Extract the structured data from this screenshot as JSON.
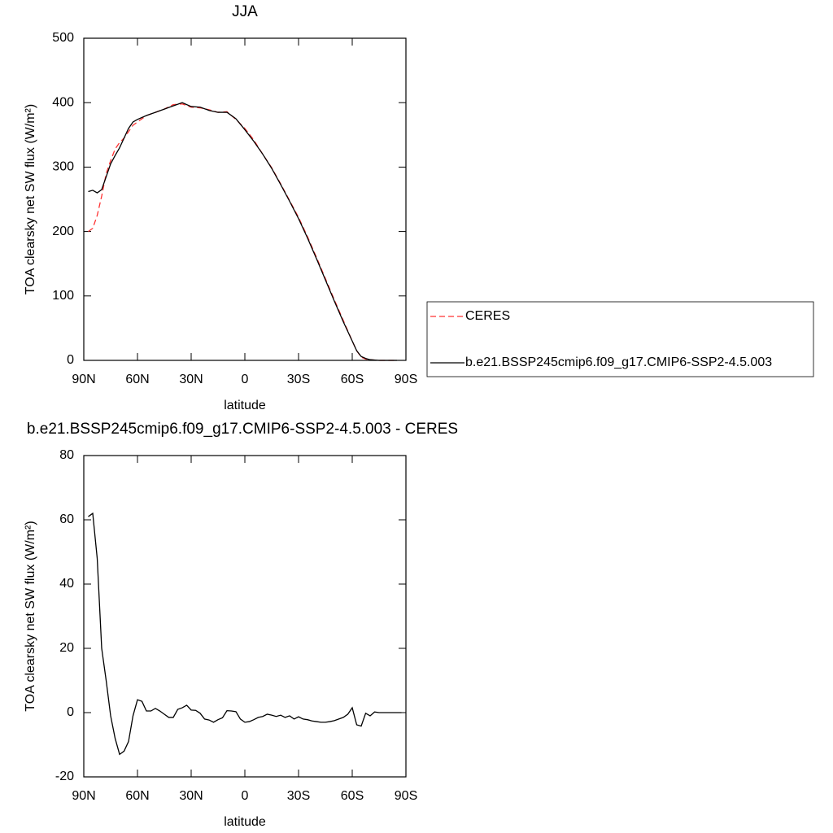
{
  "chart_data": [
    {
      "type": "line",
      "title": "JJA",
      "xlabel": "latitude",
      "ylabel": "TOA clearsky net SW flux (W/m²)",
      "xlim": [
        90,
        -90
      ],
      "xticks": [
        {
          "value": 90,
          "label": "90N"
        },
        {
          "value": 60,
          "label": "60N"
        },
        {
          "value": 30,
          "label": "30N"
        },
        0,
        {
          "value": -30,
          "label": "30S"
        },
        {
          "value": -60,
          "label": "60S"
        },
        {
          "value": -90,
          "label": "90S"
        }
      ],
      "ylim": [
        0,
        500
      ],
      "yticks": [
        0,
        100,
        200,
        300,
        400,
        500
      ],
      "legend": "right",
      "x": [
        87.5,
        85,
        82.5,
        80,
        77.5,
        75,
        72.5,
        70,
        67.5,
        65,
        62.5,
        60,
        55,
        50,
        45,
        40,
        35,
        30,
        25,
        20,
        15,
        10,
        5,
        0,
        -5,
        -10,
        -15,
        -20,
        -25,
        -30,
        -35,
        -40,
        -45,
        -50,
        -55,
        -60,
        -62.5,
        -65,
        -67.5,
        -70,
        -75,
        -80,
        -85
      ],
      "series": [
        {
          "name": "CERES",
          "color": "#ff3333",
          "dashed": true,
          "values": [
            200,
            205,
            225,
            255,
            290,
            310,
            328,
            338,
            345,
            355,
            365,
            370,
            380,
            385,
            390,
            397,
            398,
            393,
            392,
            389,
            385,
            386,
            374,
            360,
            342,
            320,
            299,
            274,
            248,
            222,
            192,
            160,
            127,
            94,
            62,
            30,
            15,
            5,
            2,
            1,
            0,
            0,
            0
          ]
        },
        {
          "name": "b.e21.BSSP245cmip6.f09_g17.CMIP6-SSP2-4.5.003",
          "color": "#000000",
          "dashed": false,
          "values": [
            262,
            264,
            260,
            265,
            285,
            305,
            318,
            330,
            345,
            360,
            370,
            374,
            380,
            385,
            390,
            395,
            400,
            394,
            393,
            388,
            385,
            385,
            375,
            358,
            340,
            320,
            298,
            273,
            247,
            220,
            190,
            158,
            125,
            92,
            60,
            30,
            15,
            6,
            3,
            1,
            0,
            0,
            0
          ]
        }
      ]
    },
    {
      "type": "line",
      "title": "b.e21.BSSP245cmip6.f09_g17.CMIP6-SSP2-4.5.003 - CERES",
      "xlabel": "latitude",
      "ylabel": "TOA clearsky net SW flux (W/m²)",
      "xlim": [
        90,
        -90
      ],
      "xticks": [
        {
          "value": 90,
          "label": "90N"
        },
        {
          "value": 60,
          "label": "60N"
        },
        {
          "value": 30,
          "label": "30N"
        },
        0,
        {
          "value": -30,
          "label": "30S"
        },
        {
          "value": -60,
          "label": "60S"
        },
        {
          "value": -90,
          "label": "90S"
        }
      ],
      "ylim": [
        -20,
        80
      ],
      "yticks": [
        -20,
        0,
        20,
        40,
        60,
        80
      ],
      "x": [
        87.5,
        85,
        82.5,
        80,
        77.5,
        75,
        72.5,
        70,
        67.5,
        65,
        62.5,
        60,
        57.5,
        55,
        52.5,
        50,
        47.5,
        45,
        42.5,
        40,
        37.5,
        35,
        32.5,
        30,
        27.5,
        25,
        22.5,
        20,
        17.5,
        15,
        12.5,
        10,
        7.5,
        5,
        2.5,
        0,
        -2.5,
        -5,
        -7.5,
        -10,
        -12.5,
        -15,
        -17.5,
        -20,
        -22.5,
        -25,
        -27.5,
        -30,
        -32.5,
        -35,
        -37.5,
        -40,
        -42.5,
        -45,
        -47.5,
        -50,
        -52.5,
        -55,
        -57.5,
        -60,
        -62.5,
        -65,
        -67.5,
        -70,
        -72.5,
        -75,
        -77.5,
        -80,
        -82.5,
        -85,
        -87.5
      ],
      "series": [
        {
          "color": "#000000",
          "dashed": false,
          "values": [
            61,
            62,
            48,
            20,
            10,
            -1,
            -8,
            -13,
            -12,
            -9,
            -1,
            4,
            3.5,
            0.5,
            0.5,
            1.3,
            0.5,
            -0.5,
            -1.5,
            -1.5,
            1,
            1.5,
            2.3,
            0.8,
            0.7,
            -0.2,
            -2,
            -2.3,
            -3,
            -2.2,
            -1.6,
            0.6,
            0.5,
            0.3,
            -2,
            -3,
            -2.8,
            -2.2,
            -1.5,
            -1.2,
            -0.5,
            -0.8,
            -1.2,
            -0.8,
            -1.5,
            -1,
            -2,
            -1.3,
            -2,
            -2.2,
            -2.6,
            -2.8,
            -3,
            -3,
            -2.8,
            -2.5,
            -2,
            -1.5,
            -0.5,
            1.5,
            -3.8,
            -4.2,
            -0.2,
            -1,
            0.2,
            0,
            0,
            0,
            0,
            0,
            0
          ]
        }
      ]
    }
  ]
}
